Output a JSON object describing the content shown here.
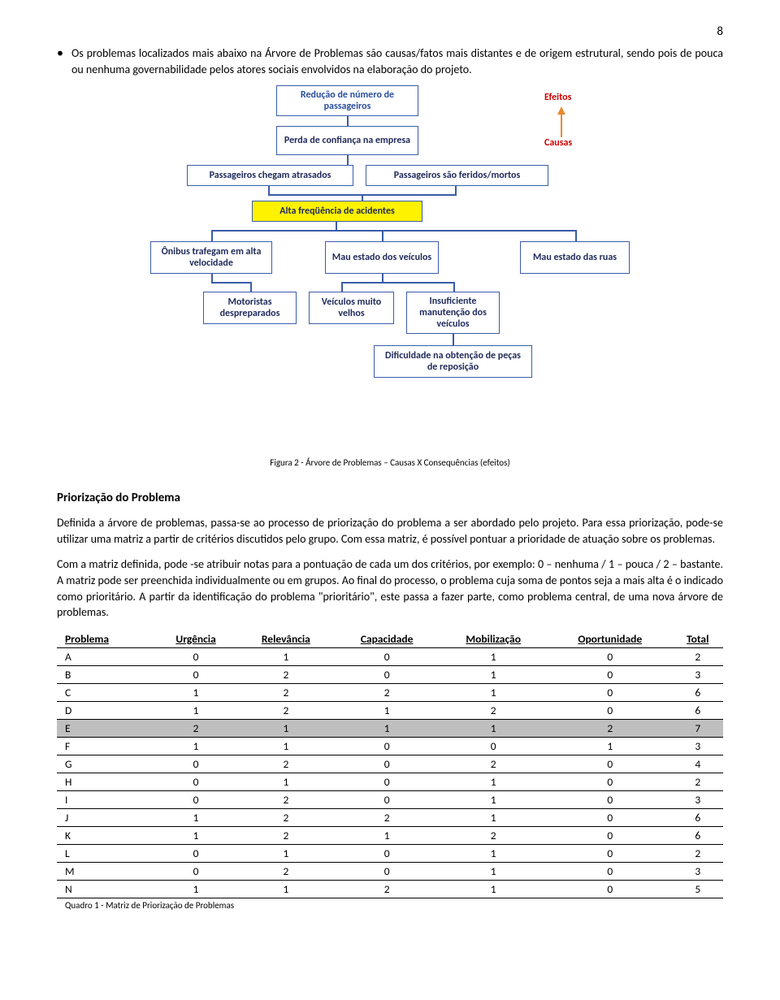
{
  "page_number": "8",
  "bullet_text": "Os problemas localizados mais abaixo na Árvore de Problemas são causas/fatos mais distantes e de origem estrutural, sendo pois de pouca ou nenhuma governabilidade pelos atores sociais envolvidos na elaboração do projeto.",
  "diagram": {
    "efeitos": "Efeitos",
    "causas": "Causas",
    "reducao": "Redução de número de passageiros",
    "perda": "Perda de confiança na empresa",
    "atrasados": "Passageiros chegam atrasados",
    "feridos": "Passageiros são feridos/mortos",
    "alta_freq": "Alta freqüência de acidentes",
    "onibus": "Ônibus trafegam em alta velocidade",
    "mau_veic": "Mau estado dos veículos",
    "mau_ruas": "Mau estado das ruas",
    "motoristas": "Motoristas despreparados",
    "veic_velhos": "Veículos muito velhos",
    "insuf": "Insuficiente manutenção dos veículos",
    "dificuldade": "Dificuldade na obtenção de peças de reposição"
  },
  "caption1": "Figura 2 - Árvore de Problemas – Causas X Consequências (efeitos)",
  "section_title": "Priorização do Problema",
  "para1": "Definida a árvore de problemas, passa-se ao processo de priorização do problema a ser abordado pelo projeto. Para essa priorização, pode-se utilizar uma matriz a partir de critérios discutidos pelo grupo. Com essa matriz, é possível pontuar a prioridade de atuação sobre os problemas.",
  "para2": "Com a matriz definida, pode -se atribuir notas para a pontuação de cada um dos critérios, por exemplo: 0 – nenhuma / 1 – pouca / 2 – bastante. A matriz pode ser preenchida individualmente ou em grupos. Ao final do processo, o problema cuja soma de pontos seja a mais alta é o indicado como prioritário. A partir da identificação do problema \"prioritário\", este passa a fazer parte, como problema central, de uma nova árvore de problemas.",
  "table": {
    "headers": [
      "Problema",
      "Urgência",
      "Relevância",
      "Capacidade",
      "Mobilização",
      "Oportunidade",
      "Total"
    ],
    "rows": [
      [
        "A",
        "0",
        "1",
        "0",
        "1",
        "0",
        "2"
      ],
      [
        "B",
        "0",
        "2",
        "0",
        "1",
        "0",
        "3"
      ],
      [
        "C",
        "1",
        "2",
        "2",
        "1",
        "0",
        "6"
      ],
      [
        "D",
        "1",
        "2",
        "1",
        "2",
        "0",
        "6"
      ],
      [
        "E",
        "2",
        "1",
        "1",
        "1",
        "2",
        "7"
      ],
      [
        "F",
        "1",
        "1",
        "0",
        "0",
        "1",
        "3"
      ],
      [
        "G",
        "0",
        "2",
        "0",
        "2",
        "0",
        "4"
      ],
      [
        "H",
        "0",
        "1",
        "0",
        "1",
        "0",
        "2"
      ],
      [
        "I",
        "0",
        "2",
        "0",
        "1",
        "0",
        "3"
      ],
      [
        "J",
        "1",
        "2",
        "2",
        "1",
        "0",
        "6"
      ],
      [
        "K",
        "1",
        "2",
        "1",
        "2",
        "0",
        "6"
      ],
      [
        "L",
        "0",
        "1",
        "0",
        "1",
        "0",
        "2"
      ],
      [
        "M",
        "0",
        "2",
        "0",
        "1",
        "0",
        "3"
      ],
      [
        "N",
        "1",
        "1",
        "2",
        "1",
        "0",
        "5"
      ]
    ],
    "highlight_row": 4
  },
  "caption2": "Quadro 1 - Matriz de Priorização de Problemas"
}
